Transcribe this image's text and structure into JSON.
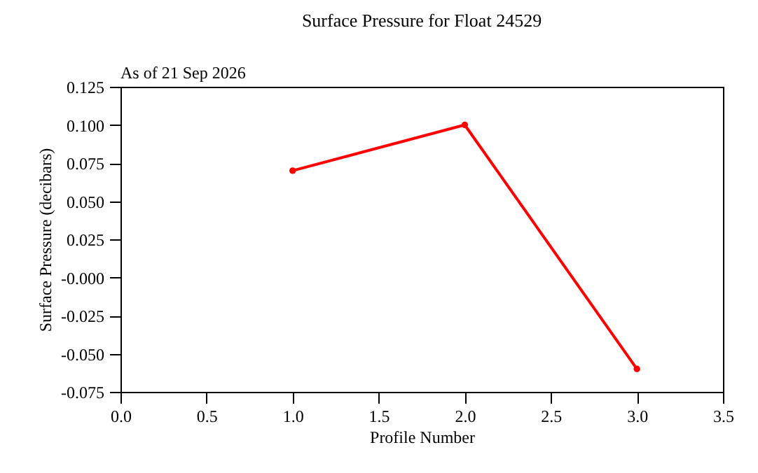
{
  "chart_data": {
    "type": "line",
    "title": "Surface Pressure for Float 24529",
    "subtitle": "As of 21 Sep 2026",
    "xlabel": "Profile Number",
    "ylabel": "Surface Pressure (decibars)",
    "x": [
      1,
      2,
      3
    ],
    "series": [
      {
        "color": "#ff0000",
        "values": [
          0.07,
          0.1,
          -0.06
        ]
      }
    ],
    "xlim": [
      0,
      3.5
    ],
    "xticks": [
      {
        "value": 0,
        "label": "0.0"
      },
      {
        "value": 0.5,
        "label": "0.5"
      },
      {
        "value": 1,
        "label": "1.0"
      },
      {
        "value": 1.5,
        "label": "1.5"
      },
      {
        "value": 2,
        "label": "2.0"
      },
      {
        "value": 2.5,
        "label": "2.5"
      },
      {
        "value": 3,
        "label": "3.0"
      },
      {
        "value": 3.5,
        "label": "3.5"
      }
    ],
    "ylim": [
      -0.075,
      0.125
    ],
    "yticks": [
      {
        "value": -0.075,
        "label": "-0.075"
      },
      {
        "value": -0.05,
        "label": "-0.050"
      },
      {
        "value": -0.025,
        "label": "-0.025"
      },
      {
        "value": 0,
        "label": "-0.000"
      },
      {
        "value": 0.025,
        "label": "0.025"
      },
      {
        "value": 0.05,
        "label": "0.050"
      },
      {
        "value": 0.075,
        "label": "0.075"
      },
      {
        "value": 0.1,
        "label": "0.100"
      },
      {
        "value": 0.125,
        "label": "0.125"
      }
    ],
    "marker": "circle",
    "line_style": "solid",
    "grid": false
  }
}
